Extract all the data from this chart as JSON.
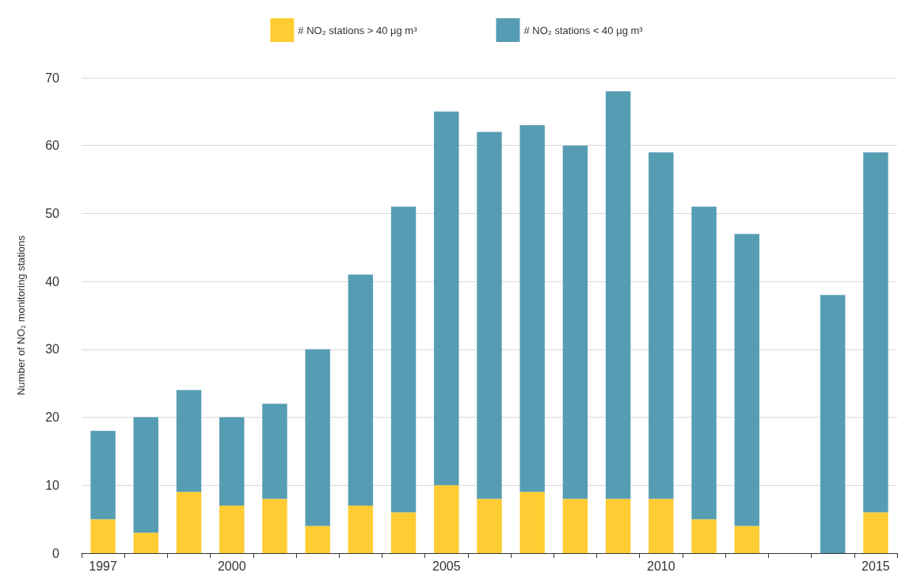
{
  "chart_data": {
    "type": "bar",
    "stacked": true,
    "ylabel": "Number of NO₂ monitoring stations",
    "categories": [
      "1997",
      null,
      null,
      "2000",
      null,
      null,
      null,
      null,
      "2005",
      null,
      null,
      null,
      null,
      "2010",
      null,
      null,
      null,
      null,
      "2015"
    ],
    "series": [
      {
        "name": "# NO₂ stations > 40 µg m³",
        "color": "#ffcd33",
        "values": [
          5,
          3,
          9,
          7,
          8,
          4,
          7,
          6,
          10,
          8,
          9,
          8,
          8,
          8,
          5,
          4,
          null,
          0,
          6
        ]
      },
      {
        "name": "# NO₂ stations < 40 µg m³",
        "color": "#569db4",
        "values": [
          13,
          17,
          15,
          13,
          14,
          26,
          34,
          45,
          55,
          54,
          54,
          52,
          60,
          51,
          46,
          43,
          null,
          38,
          53
        ]
      }
    ],
    "ylim": [
      0,
      70
    ],
    "yticks": [
      0,
      10,
      20,
      30,
      40,
      50,
      60,
      70
    ],
    "grid": "y",
    "legend": "top"
  }
}
